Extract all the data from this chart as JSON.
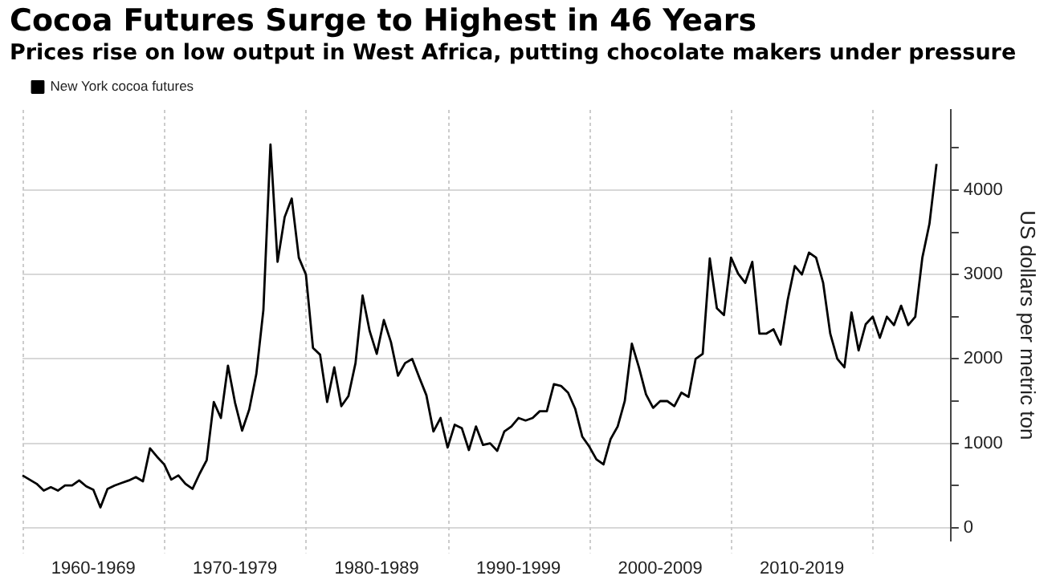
{
  "chart_data": {
    "type": "line",
    "title": "Cocoa Futures Surge to Highest in 46 Years",
    "subtitle": "Prices rise on low output in West Africa, putting chocolate makers under pressure",
    "ylabel": "US dollars per metric ton",
    "categories": [
      null,
      null,
      null,
      null,
      null,
      null,
      null,
      null,
      null,
      null,
      "1960-1969",
      null,
      null,
      null,
      null,
      null,
      null,
      null,
      null,
      null,
      null,
      null,
      null,
      null,
      null,
      null,
      null,
      null,
      null,
      null,
      "1970-1979",
      null,
      null,
      null,
      null,
      null,
      null,
      null,
      null,
      null,
      null,
      null,
      null,
      null,
      null,
      null,
      null,
      null,
      null,
      null,
      "1980-1989",
      null,
      null,
      null,
      null,
      null,
      null,
      null,
      null,
      null,
      null,
      null,
      null,
      null,
      null,
      null,
      null,
      null,
      null,
      null,
      "1990-1999",
      null,
      null,
      null,
      null,
      null,
      null,
      null,
      null,
      null,
      null,
      null,
      null,
      null,
      null,
      null,
      null,
      null,
      null,
      null,
      "2000-2009",
      null,
      null,
      null,
      null,
      null,
      null,
      null,
      null,
      null,
      null,
      null,
      null,
      null,
      null,
      null,
      null,
      null,
      null,
      null,
      "2010-2019",
      null,
      null,
      null,
      null,
      null,
      null,
      null,
      null,
      null,
      null,
      null,
      null,
      null,
      null,
      null,
      null,
      null,
      null,
      null,
      null,
      null
    ],
    "series": [
      {
        "name": "New York cocoa futures",
        "color": "#000000",
        "values": [
          620,
          570,
          520,
          440,
          480,
          440,
          500,
          500,
          560,
          490,
          450,
          240,
          460,
          500,
          530,
          560,
          600,
          550,
          940,
          840,
          750,
          570,
          620,
          520,
          460,
          640,
          800,
          1490,
          1300,
          1920,
          1480,
          1150,
          1400,
          1820,
          2580,
          4540,
          3150,
          3680,
          3900,
          3200,
          3000,
          2130,
          2050,
          1490,
          1900,
          1440,
          1560,
          1950,
          2750,
          2330,
          2060,
          2460,
          2200,
          1800,
          1950,
          2000,
          1780,
          1570,
          1140,
          1300,
          950,
          1220,
          1180,
          920,
          1200,
          980,
          1000,
          910,
          1140,
          1200,
          1300,
          1270,
          1300,
          1380,
          1380,
          1700,
          1680,
          1600,
          1410,
          1080,
          960,
          810,
          750,
          1050,
          1200,
          1500,
          2180,
          1900,
          1580,
          1420,
          1500,
          1500,
          1440,
          1600,
          1550,
          2000,
          2060,
          3190,
          2600,
          2520,
          3200,
          3010,
          2900,
          3150,
          2300,
          2300,
          2350,
          2170,
          2700,
          3100,
          3000,
          3260,
          3200,
          2900,
          2300,
          2000,
          1900,
          2550,
          2100,
          2410,
          2500,
          2250,
          2500,
          2400,
          2630,
          2400,
          2500,
          3200,
          3600,
          4310,
          null,
          null
        ]
      }
    ],
    "ylim": [
      -150,
      4950
    ],
    "yticks": [
      0,
      {
        "value": 500,
        "label": null
      },
      1000,
      {
        "value": 1500,
        "label": null
      },
      2000,
      {
        "value": 2500,
        "label": null
      },
      3000,
      {
        "value": 3500,
        "label": null
      },
      4000,
      {
        "value": 4500,
        "label": null
      }
    ],
    "grid": true,
    "legend": "top left",
    "marker": "none",
    "line_style": "solid"
  }
}
